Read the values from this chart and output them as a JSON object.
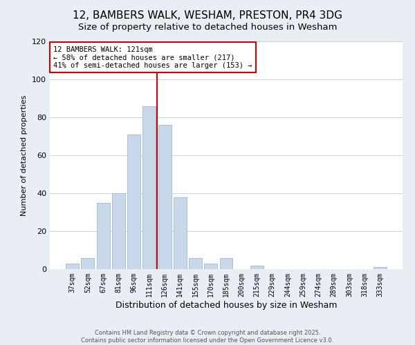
{
  "title": "12, BAMBERS WALK, WESHAM, PRESTON, PR4 3DG",
  "subtitle": "Size of property relative to detached houses in Wesham",
  "xlabel": "Distribution of detached houses by size in Wesham",
  "ylabel": "Number of detached properties",
  "bar_labels": [
    "37sqm",
    "52sqm",
    "67sqm",
    "81sqm",
    "96sqm",
    "111sqm",
    "126sqm",
    "141sqm",
    "155sqm",
    "170sqm",
    "185sqm",
    "200sqm",
    "215sqm",
    "229sqm",
    "244sqm",
    "259sqm",
    "274sqm",
    "289sqm",
    "303sqm",
    "318sqm",
    "333sqm"
  ],
  "bar_values": [
    3,
    6,
    35,
    40,
    71,
    86,
    76,
    38,
    6,
    3,
    6,
    0,
    2,
    0,
    0,
    0,
    0,
    0,
    0,
    0,
    1
  ],
  "bar_color": "#c8d8ea",
  "bar_edge_color": "#a8c0d8",
  "vline_color": "#cc0000",
  "ylim": [
    0,
    120
  ],
  "yticks": [
    0,
    20,
    40,
    60,
    80,
    100,
    120
  ],
  "annotation_title": "12 BAMBERS WALK: 121sqm",
  "annotation_line1": "← 58% of detached houses are smaller (217)",
  "annotation_line2": "41% of semi-detached houses are larger (153) →",
  "annotation_box_facecolor": "#ffffff",
  "annotation_box_edgecolor": "#cc0000",
  "footer_line1": "Contains HM Land Registry data © Crown copyright and database right 2025.",
  "footer_line2": "Contains public sector information licensed under the Open Government Licence v3.0.",
  "background_color": "#e8eef4",
  "plot_background_color": "#ffffff",
  "title_fontsize": 11,
  "subtitle_fontsize": 9.5,
  "xlabel_fontsize": 9,
  "ylabel_fontsize": 8,
  "grid_color": "#c8d4e0",
  "vline_x": 5.5
}
